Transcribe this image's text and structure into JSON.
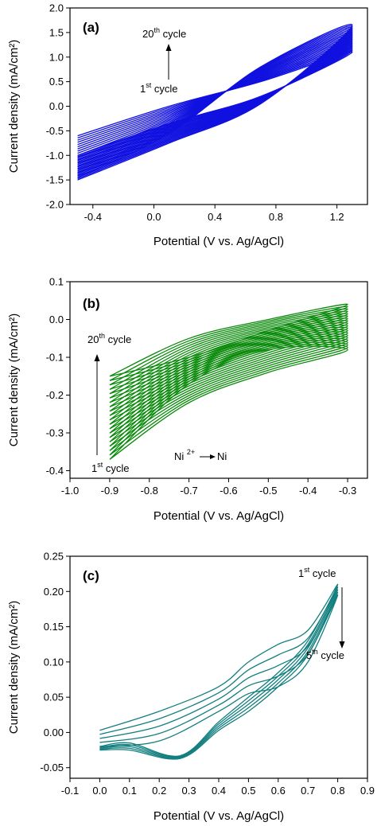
{
  "chart_data": [
    {
      "type": "line",
      "panel_label": "(a)",
      "xlabel": "Potential (V vs. Ag/AgCl)",
      "ylabel": "Current density (mA/cm²)",
      "xlim": [
        -0.55,
        1.4
      ],
      "ylim": [
        -2.0,
        2.0
      ],
      "xticks": [
        -0.4,
        0.0,
        0.4,
        0.8,
        1.2
      ],
      "xtick_labels": [
        "-0.4",
        "0.0",
        "0.4",
        "0.8",
        "1.2"
      ],
      "yticks": [
        -2.0,
        -1.5,
        -1.0,
        -0.5,
        0.0,
        0.5,
        1.0,
        1.5,
        2.0
      ],
      "ytick_labels": [
        "-2.0",
        "-1.5",
        "-1.0",
        "-0.5",
        "0.0",
        "0.5",
        "1.0",
        "1.5",
        "2.0"
      ],
      "color": "#1010e0",
      "annotations": {
        "top": {
          "num": "20",
          "sup": "th",
          "rest": " cycle"
        },
        "bottom": {
          "num": "1",
          "sup": "st",
          "rest": " cycle"
        }
      },
      "cycles": 20,
      "series": [
        {
          "name": "1st cycle",
          "x": [
            -0.5,
            0.1,
            0.7,
            1.3,
            0.7,
            0.1,
            -0.5
          ],
          "y": [
            -0.6,
            0.0,
            0.5,
            1.1,
            0.2,
            -0.35,
            -1.0
          ]
        },
        {
          "name": "20th cycle",
          "x": [
            -0.5,
            0.1,
            0.7,
            1.3,
            0.7,
            0.1,
            -0.5
          ],
          "y": [
            -1.45,
            -0.55,
            0.8,
            1.65,
            0.05,
            -0.75,
            -1.5
          ]
        }
      ]
    },
    {
      "type": "line",
      "panel_label": "(b)",
      "xlabel": "Potential (V vs. Ag/AgCl)",
      "ylabel": "Current density (mA/cm²)",
      "xlim": [
        -1.0,
        -0.25
      ],
      "ylim": [
        -0.42,
        0.1
      ],
      "xticks": [
        -1.0,
        -0.9,
        -0.8,
        -0.7,
        -0.6,
        -0.5,
        -0.4,
        -0.3
      ],
      "xtick_labels": [
        "-1.0",
        "-0.9",
        "-0.8",
        "-0.7",
        "-0.6",
        "-0.5",
        "-0.4",
        "-0.3"
      ],
      "yticks": [
        -0.4,
        -0.3,
        -0.2,
        -0.1,
        0.0,
        0.1
      ],
      "ytick_labels": [
        "-0.4",
        "-0.3",
        "-0.2",
        "-0.1",
        "0.0",
        "0.1"
      ],
      "color": "#0a8a0a",
      "annotations": {
        "top": {
          "num": "20",
          "sup": "th",
          "rest": " cycle"
        },
        "bottom": {
          "num": "1",
          "sup": "st",
          "rest": " cycle"
        },
        "reaction": {
          "a": "Ni ",
          "sup": "2+",
          "b": "Ni"
        }
      },
      "cycles": 20,
      "series": [
        {
          "name": "1st cycle",
          "x": [
            -0.9,
            -0.7,
            -0.5,
            -0.3,
            -0.5,
            -0.7,
            -0.9
          ],
          "y": [
            -0.37,
            -0.22,
            -0.14,
            -0.08,
            -0.08,
            -0.17,
            -0.37
          ]
        },
        {
          "name": "20th cycle",
          "x": [
            -0.9,
            -0.7,
            -0.5,
            -0.3,
            -0.5,
            -0.7,
            -0.9
          ],
          "y": [
            -0.15,
            -0.1,
            -0.03,
            0.04,
            0.0,
            -0.05,
            -0.15
          ]
        }
      ]
    },
    {
      "type": "line",
      "panel_label": "(c)",
      "xlabel": "Potential (V vs. Ag/AgCl)",
      "ylabel": "Current density (mA/cm²)",
      "xlim": [
        -0.1,
        0.9
      ],
      "ylim": [
        -0.065,
        0.25
      ],
      "xticks": [
        -0.1,
        0.0,
        0.1,
        0.2,
        0.3,
        0.4,
        0.5,
        0.6,
        0.7,
        0.8,
        0.9
      ],
      "xtick_labels": [
        "-0.1",
        "0.0",
        "0.1",
        "0.2",
        "0.3",
        "0.4",
        "0.5",
        "0.6",
        "0.7",
        "0.8",
        "0.9"
      ],
      "yticks": [
        -0.05,
        0.0,
        0.05,
        0.1,
        0.15,
        0.2,
        0.25
      ],
      "ytick_labels": [
        "-0.05",
        "0.00",
        "0.05",
        "0.10",
        "0.15",
        "0.20",
        "0.25"
      ],
      "color": "#137f7f",
      "annotations": {
        "top": {
          "num": "1",
          "sup": "st",
          "rest": " cycle"
        },
        "bottom": {
          "num": "5",
          "sup": "th",
          "rest": " cycle"
        }
      },
      "cycles": 5,
      "series": [
        {
          "name": "1st cycle",
          "x": [
            0.0,
            0.2,
            0.4,
            0.5,
            0.6,
            0.7,
            0.8,
            0.7,
            0.6,
            0.5,
            0.4,
            0.27,
            0.1,
            0.0
          ],
          "y": [
            0.003,
            0.03,
            0.065,
            0.1,
            0.125,
            0.145,
            0.21,
            0.13,
            0.085,
            0.05,
            0.015,
            -0.033,
            -0.015,
            -0.02
          ]
        },
        {
          "name": "5th cycle",
          "x": [
            0.0,
            0.2,
            0.4,
            0.5,
            0.6,
            0.7,
            0.8,
            0.7,
            0.6,
            0.5,
            0.4,
            0.27,
            0.1,
            0.0
          ],
          "y": [
            -0.02,
            -0.012,
            0.03,
            0.055,
            0.065,
            0.1,
            0.195,
            0.11,
            0.065,
            0.03,
            0.003,
            -0.037,
            -0.025,
            -0.025
          ]
        }
      ]
    }
  ]
}
